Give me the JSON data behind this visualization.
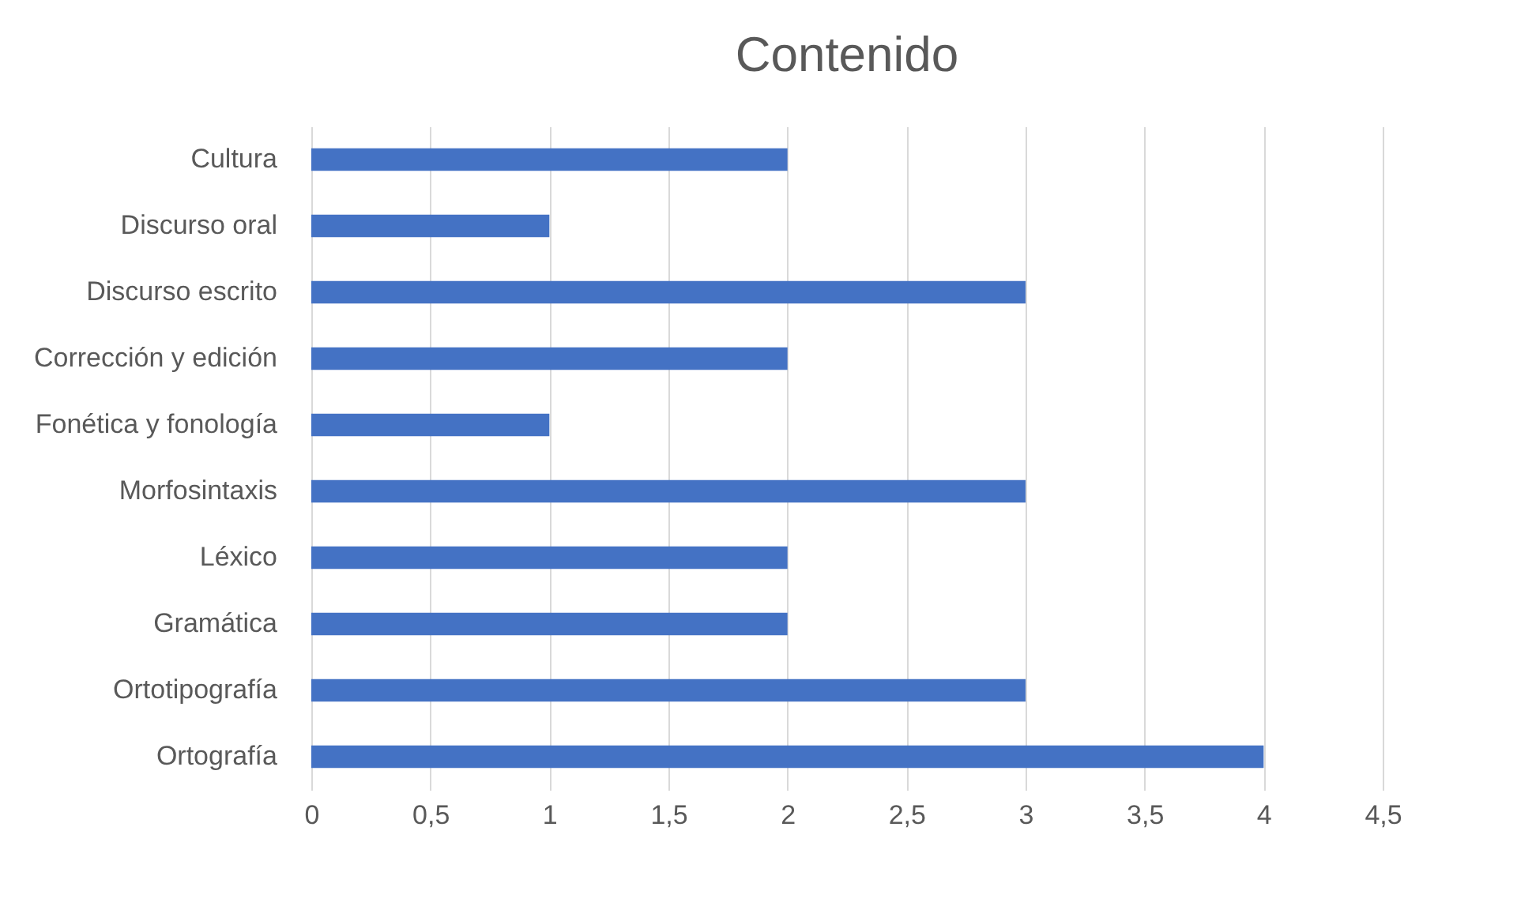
{
  "chart_data": {
    "type": "bar",
    "orientation": "horizontal",
    "title": "Contenido",
    "categories": [
      "Cultura",
      "Discurso oral",
      "Discurso escrito",
      "Corrección y edición",
      "Fonética y fonología",
      "Morfosintaxis",
      "Léxico",
      "Gramática",
      "Ortotipografía",
      "Ortografía"
    ],
    "values": [
      2,
      1,
      3,
      2,
      1,
      3,
      2,
      2,
      3,
      4
    ],
    "color": "#4472c4",
    "xlim": [
      0,
      4.5
    ],
    "xticks": [
      0,
      {
        "value": 0.5,
        "label": "0,5"
      },
      1,
      {
        "value": 1.5,
        "label": "1,5"
      },
      2,
      {
        "value": 2.5,
        "label": "2,5"
      },
      3,
      {
        "value": 3.5,
        "label": "3,5"
      },
      4,
      {
        "value": 4.5,
        "label": "4,5"
      }
    ],
    "grid": "x"
  }
}
